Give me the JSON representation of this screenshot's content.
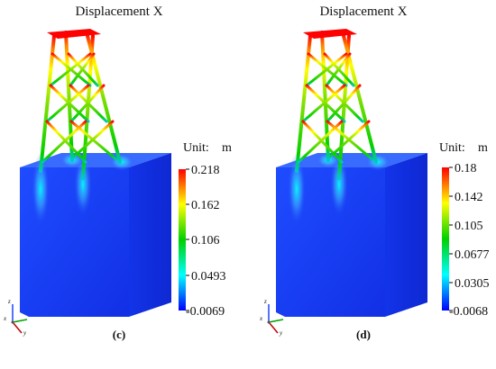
{
  "panels": [
    {
      "id": "c",
      "title": "Displacement X",
      "caption": "(c)",
      "unit_label": "Unit:",
      "unit": "m",
      "scale_ticks": [
        "0.218",
        "0.162",
        "0.106",
        "0.0493",
        "-0.0069"
      ],
      "axis_labels": [
        "z",
        "x",
        "y"
      ]
    },
    {
      "id": "d",
      "title": "Displacement X",
      "caption": "(d)",
      "unit_label": "Unit:",
      "unit": "m",
      "scale_ticks": [
        "0.18",
        "0.142",
        "0.105",
        "0.0677",
        "0.0305",
        "-0.0068"
      ],
      "axis_labels": [
        "z",
        "x",
        "y"
      ]
    }
  ],
  "colors": {
    "max": "#ff0000",
    "high": "#ffff00",
    "mid": "#00d000",
    "low": "#00ffff",
    "min": "#0000ff",
    "block": "#1233f0"
  }
}
